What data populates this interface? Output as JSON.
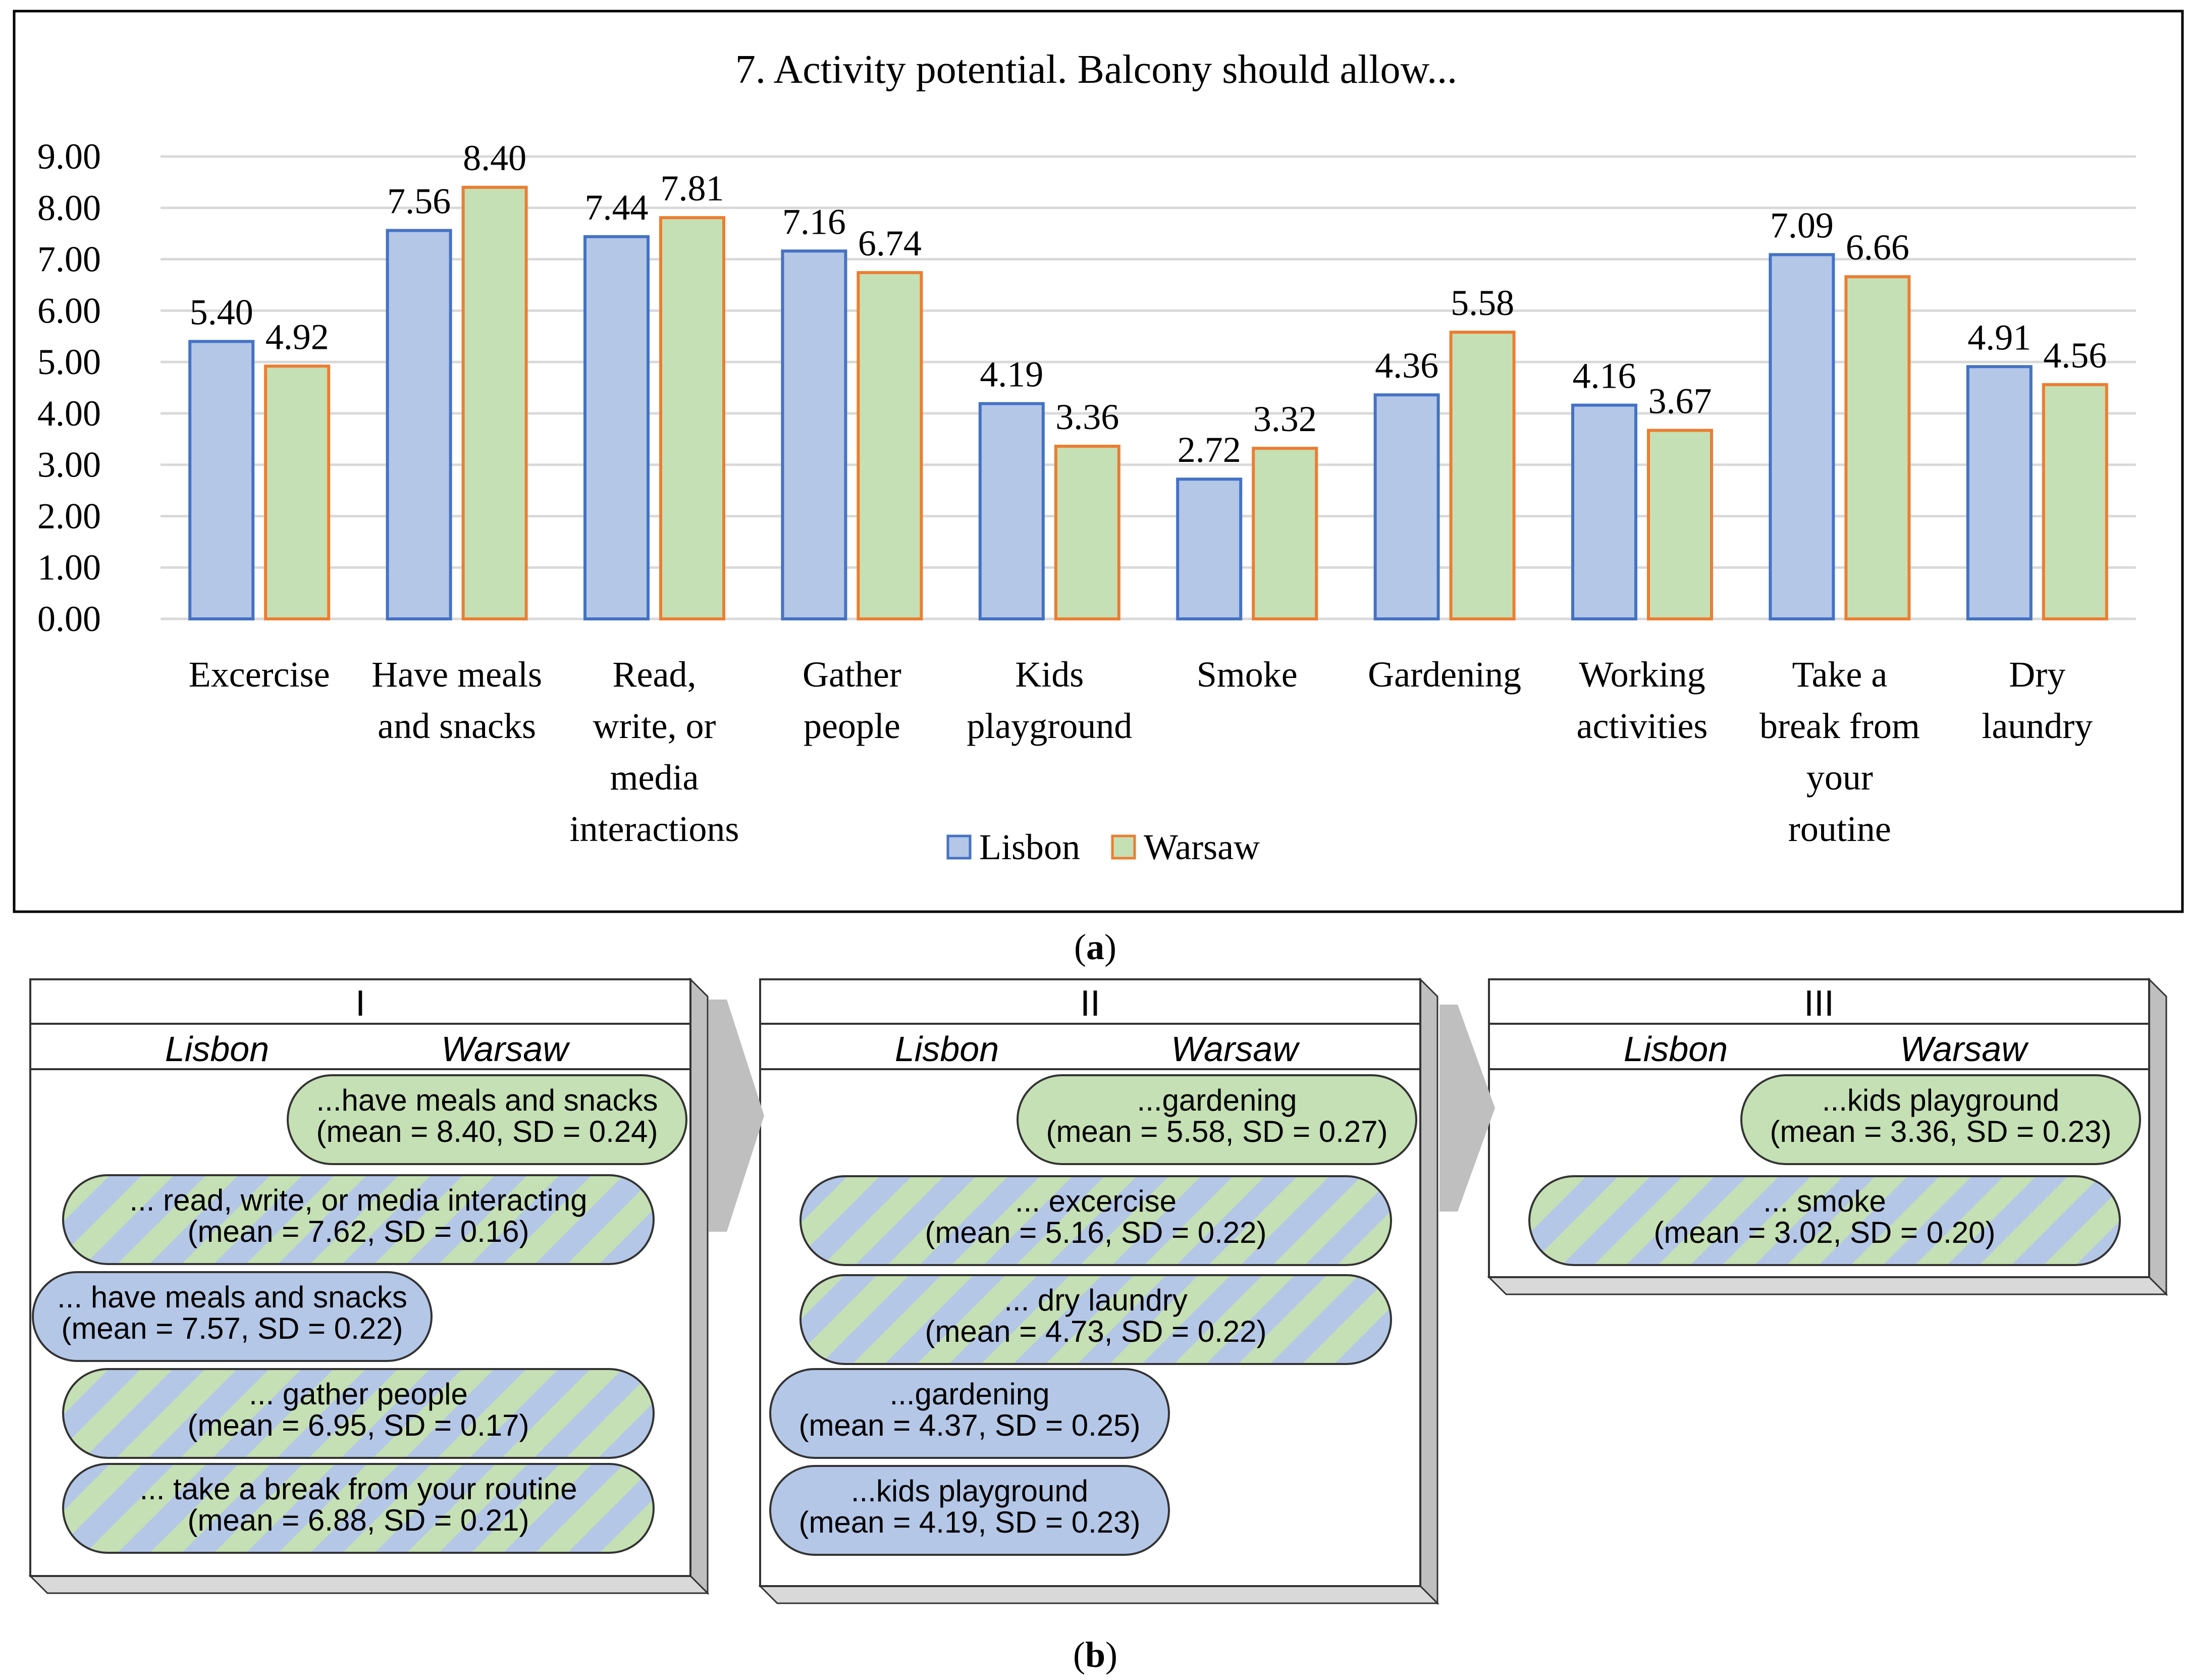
{
  "chart_data": {
    "type": "bar",
    "title": "7. Activity potential. Balcony should allow...",
    "categories": [
      [
        "Excercise"
      ],
      [
        "Have meals",
        "and snacks"
      ],
      [
        "Read,",
        "write, or",
        "media",
        "interactions"
      ],
      [
        "Gather",
        "people"
      ],
      [
        "Kids",
        "playground"
      ],
      [
        "Smoke"
      ],
      [
        "Gardening"
      ],
      [
        "Working",
        "activities"
      ],
      [
        "Take a",
        "break from",
        "your",
        "routine"
      ],
      [
        "Dry",
        "laundry"
      ]
    ],
    "series": [
      {
        "name": "Lisbon",
        "fill": "#b4c7e7",
        "stroke": "#4472c4",
        "values": [
          5.4,
          7.56,
          7.44,
          7.16,
          4.19,
          2.72,
          4.36,
          4.16,
          7.09,
          4.91
        ],
        "labels": [
          "5.40",
          "7.56",
          "7.44",
          "7.16",
          "4.19",
          "2.72",
          "4.36",
          "4.16",
          "7.09",
          "4.91"
        ]
      },
      {
        "name": "Warsaw",
        "fill": "#c5e0b4",
        "stroke": "#ed7d31",
        "values": [
          4.92,
          8.4,
          7.81,
          6.74,
          3.36,
          3.32,
          5.58,
          3.67,
          6.66,
          4.56
        ],
        "labels": [
          "4.92",
          "8.40",
          "7.81",
          "6.74",
          "3.36",
          "3.32",
          "5.58",
          "3.67",
          "6.66",
          "4.56"
        ]
      }
    ],
    "ylim": [
      0,
      9
    ],
    "yticks": [
      "0.00",
      "1.00",
      "2.00",
      "3.00",
      "4.00",
      "5.00",
      "6.00",
      "7.00",
      "8.00",
      "9.00"
    ],
    "legend": [
      "Lisbon",
      "Warsaw"
    ],
    "legend_position": "bottom",
    "gridlines": true
  },
  "caption_a": {
    "open": "(",
    "letter": "a",
    "close": ")"
  },
  "caption_b": {
    "open": "(",
    "letter": "b",
    "close": ")"
  },
  "diagram": {
    "panels": [
      {
        "roman": "I",
        "col_left": "Lisbon",
        "col_right": "Warsaw",
        "pills": [
          {
            "side": "warsaw",
            "lines": [
              "...have meals and snacks",
              "(mean = 8.40, SD = 0.24)"
            ]
          },
          {
            "side": "both",
            "lines": [
              "... read, write, or media interacting",
              "(mean = 7.62, SD = 0.16)"
            ]
          },
          {
            "side": "lisbon",
            "lines": [
              "... have meals and snacks",
              "(mean = 7.57, SD = 0.22)"
            ]
          },
          {
            "side": "both",
            "lines": [
              "... gather people",
              "(mean = 6.95, SD = 0.17)"
            ]
          },
          {
            "side": "both",
            "lines": [
              "... take a break from your routine",
              "(mean = 6.88, SD = 0.21)"
            ]
          }
        ]
      },
      {
        "roman": "II",
        "col_left": "Lisbon",
        "col_right": "Warsaw",
        "pills": [
          {
            "side": "warsaw",
            "lines": [
              "...gardening",
              "(mean = 5.58, SD = 0.27)"
            ]
          },
          {
            "side": "both",
            "lines": [
              "... excercise",
              "(mean = 5.16, SD = 0.22)"
            ]
          },
          {
            "side": "both",
            "lines": [
              "... dry laundry",
              "(mean = 4.73, SD = 0.22)"
            ]
          },
          {
            "side": "lisbon",
            "lines": [
              "...gardening",
              "(mean = 4.37, SD = 0.25)"
            ]
          },
          {
            "side": "lisbon",
            "lines": [
              "...kids playground",
              "(mean = 4.19, SD = 0.23)"
            ]
          }
        ]
      },
      {
        "roman": "III",
        "col_left": "Lisbon",
        "col_right": "Warsaw",
        "pills": [
          {
            "side": "warsaw",
            "lines": [
              "...kids playground",
              "(mean = 3.36, SD = 0.23)"
            ]
          },
          {
            "side": "both",
            "lines": [
              "... smoke",
              "(mean = 3.02, SD = 0.20)"
            ]
          }
        ]
      }
    ],
    "colors": {
      "lisbon": "#b4c7e7",
      "warsaw": "#c5e0b4",
      "arrow": "#bfbfbf",
      "border": "#333333"
    }
  }
}
